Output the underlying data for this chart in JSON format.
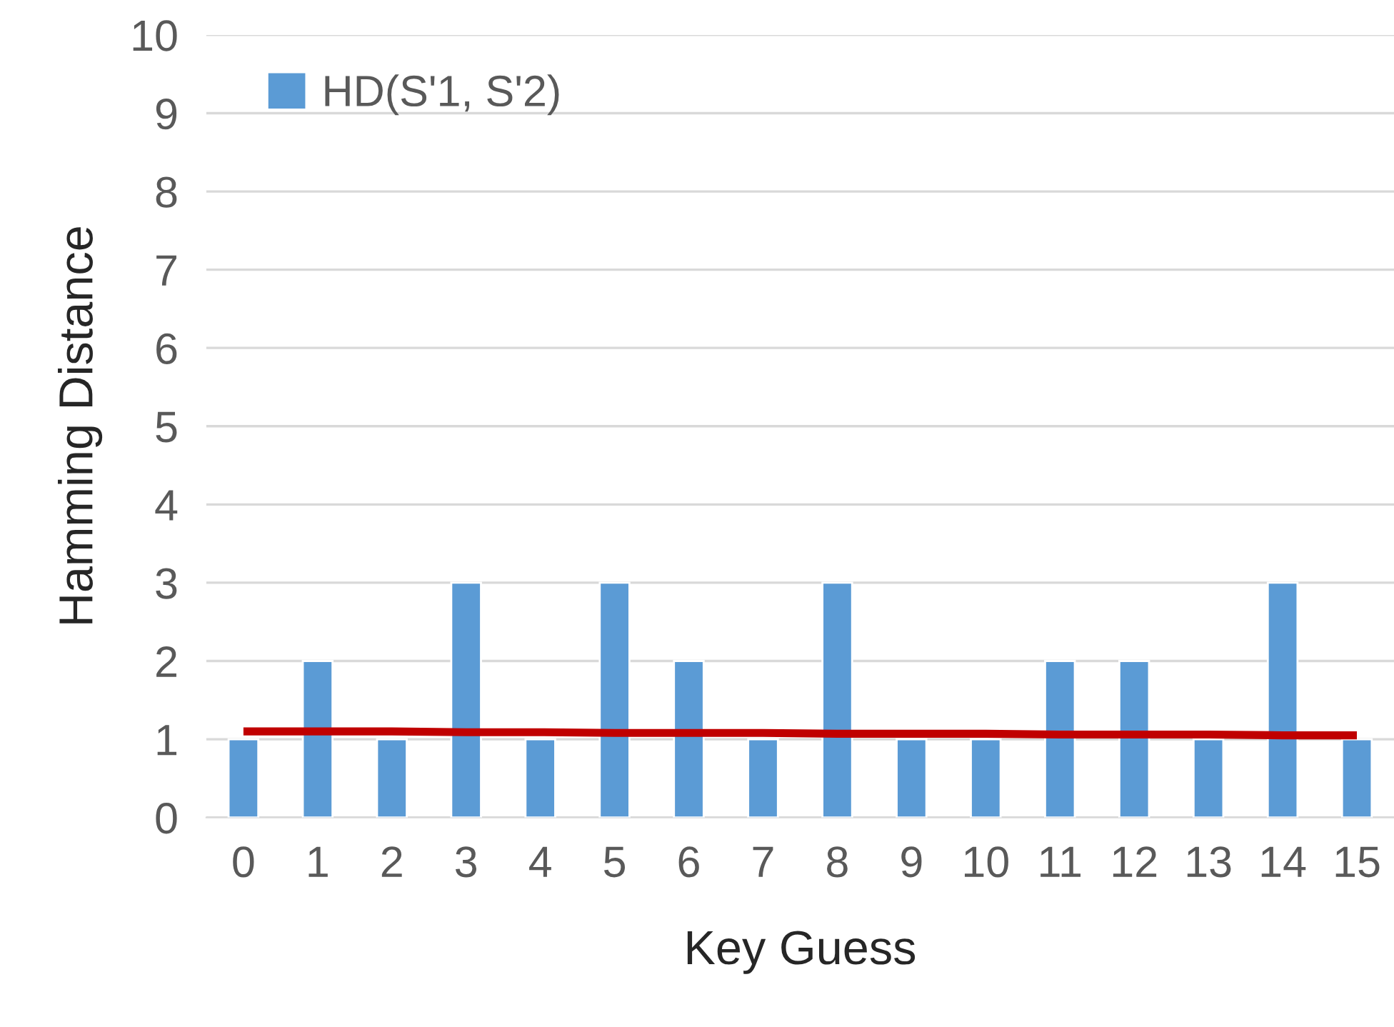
{
  "chart_data": {
    "type": "bar",
    "xlabel": "Key Guess",
    "ylabel": "Hamming Distance",
    "categories": [
      "0",
      "1",
      "2",
      "3",
      "4",
      "5",
      "6",
      "7",
      "8",
      "9",
      "10",
      "11",
      "12",
      "13",
      "14",
      "15"
    ],
    "series": [
      {
        "name": "HD(S'1, S'2)",
        "color": "#5b9bd5",
        "values": [
          1,
          2,
          1,
          3,
          1,
          3,
          2,
          1,
          3,
          1,
          1,
          2,
          2,
          1,
          3,
          1
        ]
      },
      {
        "type": "line",
        "color": "#c00000",
        "values": [
          1.1,
          1.1,
          1.1,
          1.09,
          1.09,
          1.08,
          1.08,
          1.08,
          1.07,
          1.07,
          1.07,
          1.06,
          1.06,
          1.06,
          1.05,
          1.05
        ]
      }
    ],
    "ylim": [
      0,
      10
    ],
    "yticks": [
      0,
      1,
      2,
      3,
      4,
      5,
      6,
      7,
      8,
      9,
      10
    ],
    "grid": "y",
    "legend": "top left"
  }
}
